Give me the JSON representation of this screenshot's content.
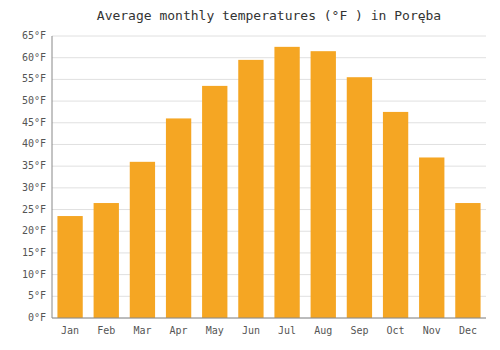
{
  "chart_data": {
    "type": "bar",
    "title": "Average monthly temperatures (°F ) in Poręba",
    "categories": [
      "Jan",
      "Feb",
      "Mar",
      "Apr",
      "May",
      "Jun",
      "Jul",
      "Aug",
      "Sep",
      "Oct",
      "Nov",
      "Dec"
    ],
    "values": [
      23.5,
      26.5,
      36.0,
      46.0,
      53.5,
      59.5,
      62.5,
      61.5,
      55.5,
      47.5,
      37.0,
      26.5
    ],
    "color": "#F5A623",
    "ylim": [
      0,
      65
    ],
    "yticks": [
      {
        "value": 0,
        "label": "0°F"
      },
      {
        "value": 5,
        "label": "5°F"
      },
      {
        "value": 10,
        "label": "10°F"
      },
      {
        "value": 15,
        "label": "15°F"
      },
      {
        "value": 20,
        "label": "20°F"
      },
      {
        "value": 25,
        "label": "25°F"
      },
      {
        "value": 30,
        "label": "30°F"
      },
      {
        "value": 35,
        "label": "35°F"
      },
      {
        "value": 40,
        "label": "40°F"
      },
      {
        "value": 45,
        "label": "45°F"
      },
      {
        "value": 50,
        "label": "50°F"
      },
      {
        "value": 55,
        "label": "55°F"
      },
      {
        "value": 60,
        "label": "60°F"
      },
      {
        "value": 65,
        "label": "65°F"
      }
    ],
    "grid": true
  }
}
